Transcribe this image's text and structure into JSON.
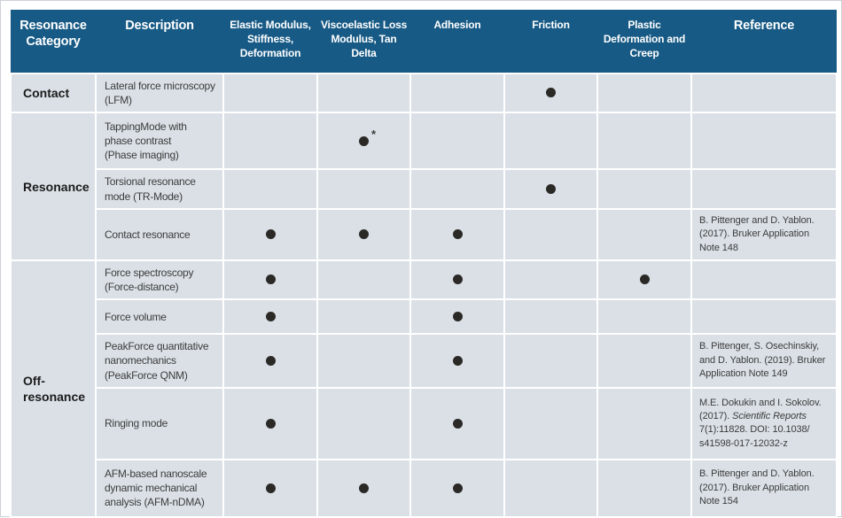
{
  "colors": {
    "header_bg": "#175a85",
    "header_text": "#ffffff",
    "cell_bg": "#dae0e6",
    "grid": "#ffffff",
    "dot": "#2b2926",
    "page_border": "#cdd1d6"
  },
  "table": {
    "columns": [
      {
        "key": "category",
        "label": "Resonance\nCategory"
      },
      {
        "key": "description",
        "label": "Description"
      },
      {
        "key": "elastic",
        "label": "Elastic Modulus,\nStiffness,\nDeformation"
      },
      {
        "key": "viscoelastic",
        "label": "Viscoelastic Loss\nModulus, Tan\nDelta"
      },
      {
        "key": "adhesion",
        "label": "Adhesion"
      },
      {
        "key": "friction",
        "label": "Friction"
      },
      {
        "key": "plastic",
        "label": "Plastic\nDeformation and\nCreep"
      },
      {
        "key": "reference",
        "label": "Reference"
      }
    ],
    "groups": [
      {
        "category": "Contact",
        "rows": 1
      },
      {
        "category": "Resonance",
        "rows": 3
      },
      {
        "category": "Off-\nresonance",
        "rows": 5
      }
    ],
    "rows": [
      {
        "description": "Lateral force microscopy\n(LFM)",
        "marks": {
          "friction": "dot"
        },
        "reference": []
      },
      {
        "description": "TappingMode with\nphase contrast\n(Phase imaging)",
        "marks": {
          "viscoelastic": "dot*"
        },
        "reference": []
      },
      {
        "description": "Torsional resonance\nmode (TR-Mode)",
        "marks": {
          "friction": "dot"
        },
        "reference": []
      },
      {
        "description": "Contact resonance",
        "marks": {
          "elastic": "dot",
          "viscoelastic": "dot",
          "adhesion": "dot"
        },
        "reference": [
          {
            "text": "B. Pittenger and D. Yablon.\n(2017). Bruker Application\nNote 148",
            "italic": false
          }
        ]
      },
      {
        "description": "Force spectroscopy\n(Force-distance)",
        "marks": {
          "elastic": "dot",
          "adhesion": "dot",
          "plastic": "dot"
        },
        "reference": []
      },
      {
        "description": "Force volume",
        "marks": {
          "elastic": "dot",
          "adhesion": "dot"
        },
        "reference": []
      },
      {
        "description": "PeakForce quantitative\nnanomechanics\n(PeakForce QNM)",
        "marks": {
          "elastic": "dot",
          "adhesion": "dot"
        },
        "reference": [
          {
            "text": "B. Pittenger, S. Osechinskiy,\nand D. Yablon. (2019). Bruker\nApplication Note 149",
            "italic": false
          }
        ]
      },
      {
        "description": "Ringing mode",
        "marks": {
          "elastic": "dot",
          "adhesion": "dot"
        },
        "reference": [
          {
            "text": "M.E. Dokukin and I. Sokolov.\n(2017). ",
            "italic": false
          },
          {
            "text": "Scientific Reports",
            "italic": true
          },
          {
            "text": "\n7(1):11828. DOI: 10.1038/\ns41598-017-12032-z",
            "italic": false
          }
        ]
      },
      {
        "description": "AFM-based nanoscale\ndynamic mechanical\nanalysis (AFM-nDMA)",
        "marks": {
          "elastic": "dot",
          "viscoelastic": "dot",
          "adhesion": "dot"
        },
        "reference": [
          {
            "text": "B. Pittenger and D. Yablon.\n(2017). Bruker Application\nNote 154",
            "italic": false
          }
        ]
      }
    ]
  }
}
